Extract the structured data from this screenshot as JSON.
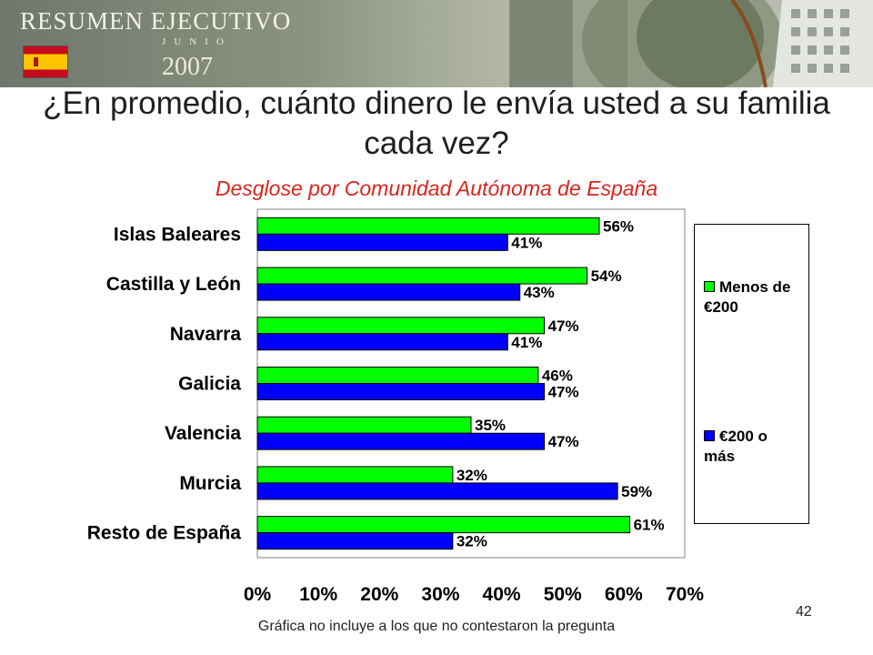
{
  "header": {
    "brand_title": "RESUMEN EJECUTIVO",
    "brand_month": "JUNIO",
    "brand_year": "2007",
    "colors": {
      "flag_red": "#c60b1e",
      "flag_yellow": "#ffc400"
    }
  },
  "slide": {
    "question": "¿En promedio, cuánto dinero le envía usted a su familia cada vez?",
    "subtitle": "Desglose por Comunidad Autónoma de España",
    "note": "Gráfica no incluye a los que no contestaron la pregunta",
    "page_number": "42"
  },
  "chart_data": {
    "type": "bar",
    "orientation": "horizontal",
    "categories": [
      "Islas Baleares",
      "Castilla y León",
      "Navarra",
      "Galicia",
      "Valencia",
      "Murcia",
      "Resto de España"
    ],
    "series": [
      {
        "name": "Menos de €200",
        "legend_lines": [
          "Menos de",
          "€200"
        ],
        "color": "#00ff00",
        "values": [
          56,
          54,
          47,
          46,
          35,
          32,
          61
        ],
        "labels": [
          "56%",
          "54%",
          "47%",
          "46%",
          "35%",
          "32%",
          "61%"
        ]
      },
      {
        "name": "€200 o más",
        "legend_lines": [
          "€200 o",
          "más"
        ],
        "color": "#0000ff",
        "values": [
          41,
          43,
          41,
          47,
          47,
          59,
          32
        ],
        "labels": [
          "41%",
          "43%",
          "41%",
          "47%",
          "47%",
          "59%",
          "32%"
        ]
      }
    ],
    "xlim": [
      0,
      70
    ],
    "xticks": [
      0,
      10,
      20,
      30,
      40,
      50,
      60,
      70
    ],
    "xtick_labels": [
      "0%",
      "10%",
      "20%",
      "30%",
      "40%",
      "50%",
      "60%",
      "70%"
    ],
    "grid": false,
    "legend_position": "right"
  }
}
